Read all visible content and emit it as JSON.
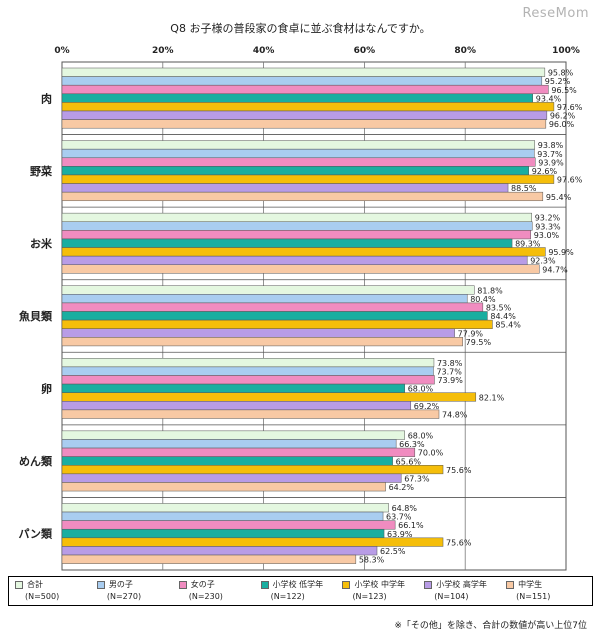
{
  "watermark": "ReseMom",
  "footnote": "※「その他」を除き、合計の数値が高い上位7位",
  "chart_data": {
    "type": "bar",
    "orientation": "horizontal",
    "title": "Q8 お子様の普段家の食卓に並ぶ食材はなんですか。",
    "categories": [
      "肉",
      "野菜",
      "お米",
      "魚貝類",
      "卵",
      "めん類",
      "パン類"
    ],
    "xlim": [
      0,
      100
    ],
    "ticks": [
      "0%",
      "20%",
      "40%",
      "60%",
      "80%",
      "100%"
    ],
    "grid": true,
    "legend_position": "bottom",
    "series": [
      {
        "name": "合計",
        "n": "(N=500)",
        "color": "#e4f7e0",
        "values": [
          95.8,
          93.8,
          93.2,
          81.8,
          73.8,
          68.0,
          64.8
        ],
        "labels": [
          "95.8%",
          "93.8%",
          "93.2%",
          "81.8%",
          "73.8%",
          "68.0%",
          "64.8%"
        ]
      },
      {
        "name": "男の子",
        "n": "(N=270)",
        "color": "#a9cdf0",
        "values": [
          95.2,
          93.7,
          93.3,
          80.4,
          73.7,
          66.3,
          63.7
        ],
        "labels": [
          "95.2%",
          "93.7%",
          "93.3%",
          "80.4%",
          "73.7%",
          "66.3%",
          "63.7%"
        ]
      },
      {
        "name": "女の子",
        "n": "(N=230)",
        "color": "#f08cc0",
        "values": [
          96.5,
          93.9,
          93.0,
          83.5,
          73.9,
          70.0,
          66.1
        ],
        "labels": [
          "96.5%",
          "93.9%",
          "93.0%",
          "83.5%",
          "73.9%",
          "70.0%",
          "66.1%"
        ]
      },
      {
        "name": "小学校 低学年",
        "n": "(N=122)",
        "color": "#1aaea0",
        "values": [
          93.4,
          92.6,
          89.3,
          84.4,
          68.0,
          65.6,
          63.9
        ],
        "labels": [
          "93.4%",
          "92.6%",
          "89.3%",
          "84.4%",
          "68.0%",
          "65.6%",
          "63.9%"
        ]
      },
      {
        "name": "小学校 中学年",
        "n": "(N=123)",
        "color": "#f5be0a",
        "values": [
          97.6,
          97.6,
          95.9,
          85.4,
          82.1,
          75.6,
          75.6
        ],
        "labels": [
          "97.6%",
          "97.6%",
          "95.9%",
          "85.4%",
          "82.1%",
          "75.6%",
          "75.6%"
        ]
      },
      {
        "name": "小学校 高学年",
        "n": "(N=104)",
        "color": "#b89ce6",
        "values": [
          96.2,
          88.5,
          92.3,
          77.9,
          69.2,
          67.3,
          62.5
        ],
        "labels": [
          "96.2%",
          "88.5%",
          "92.3%",
          "77.9%",
          "69.2%",
          "67.3%",
          "62.5%"
        ]
      },
      {
        "name": "中学生",
        "n": "(N=151)",
        "color": "#f8c9a4",
        "values": [
          96.0,
          95.4,
          94.7,
          79.5,
          74.8,
          64.2,
          58.3
        ],
        "labels": [
          "96.0%",
          "95.4%",
          "94.7%",
          "79.5%",
          "74.8%",
          "64.2%",
          "58.3%"
        ]
      }
    ]
  }
}
